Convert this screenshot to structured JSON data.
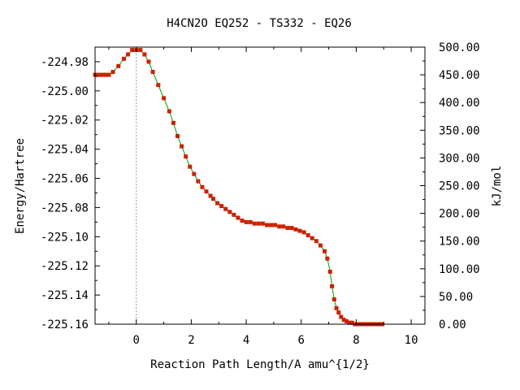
{
  "chart_data": {
    "type": "line",
    "title": "H4CN2O   EQ252 - TS332 - EQ26",
    "xlabel": "Reaction Path Length/A amu^{1/2}",
    "ylabel": "Energy/Hartree",
    "y2label": "kJ/mol",
    "xlim": [
      -1.5,
      10.5
    ],
    "ylim": [
      -225.16,
      -224.97
    ],
    "y2lim": [
      0,
      500
    ],
    "x_ticks": [
      0,
      2,
      4,
      6,
      8,
      10
    ],
    "y_ticks": [
      -224.98,
      -225.0,
      -225.02,
      -225.04,
      -225.06,
      -225.08,
      -225.1,
      -225.12,
      -225.14,
      -225.16
    ],
    "y2_ticks": [
      "0.00",
      "50.00",
      "100.00",
      "150.00",
      "200.00",
      "250.00",
      "300.00",
      "350.00",
      "400.00",
      "450.00",
      "500.00"
    ],
    "ts_x": 0,
    "colors": {
      "line": "#00a000",
      "marker": "#cc2200",
      "ts_line": "#999999"
    },
    "series": [
      {
        "x": [
          -1.5,
          -1.4,
          -1.3,
          -1.2,
          -1.1,
          -1.0,
          -0.85,
          -0.65,
          -0.45,
          -0.3,
          -0.15,
          0.0,
          0.15,
          0.3,
          0.45,
          0.6,
          0.8,
          1.0,
          1.2,
          1.35,
          1.5,
          1.65,
          1.8,
          1.95,
          2.1,
          2.25,
          2.4,
          2.55,
          2.7,
          2.8,
          2.95,
          3.1,
          3.25,
          3.4,
          3.55,
          3.7,
          3.85,
          4.0,
          4.15,
          4.3,
          4.45,
          4.6,
          4.75,
          4.9,
          5.05,
          5.2,
          5.35,
          5.5,
          5.65,
          5.8,
          5.95,
          6.1,
          6.25,
          6.4,
          6.55,
          6.7,
          6.85,
          6.95,
          7.05,
          7.12,
          7.2,
          7.28,
          7.36,
          7.45,
          7.55,
          7.65,
          7.75,
          7.85,
          7.95,
          8.05,
          8.15,
          8.25,
          8.35,
          8.45,
          8.55,
          8.65,
          8.75,
          8.85,
          8.95
        ],
        "y": [
          -224.989,
          -224.989,
          -224.989,
          -224.989,
          -224.989,
          -224.989,
          -224.987,
          -224.983,
          -224.978,
          -224.975,
          -224.972,
          -224.972,
          -224.972,
          -224.975,
          -224.98,
          -224.987,
          -224.996,
          -225.005,
          -225.014,
          -225.022,
          -225.031,
          -225.038,
          -225.045,
          -225.052,
          -225.057,
          -225.062,
          -225.066,
          -225.069,
          -225.072,
          -225.074,
          -225.077,
          -225.079,
          -225.081,
          -225.083,
          -225.085,
          -225.087,
          -225.089,
          -225.09,
          -225.09,
          -225.091,
          -225.091,
          -225.091,
          -225.092,
          -225.092,
          -225.092,
          -225.093,
          -225.093,
          -225.094,
          -225.094,
          -225.095,
          -225.096,
          -225.097,
          -225.099,
          -225.101,
          -225.103,
          -225.106,
          -225.11,
          -225.115,
          -225.124,
          -225.134,
          -225.143,
          -225.149,
          -225.152,
          -225.155,
          -225.157,
          -225.158,
          -225.159,
          -225.159,
          -225.16,
          -225.16,
          -225.16,
          -225.16,
          -225.16,
          -225.16,
          -225.16,
          -225.16,
          -225.16,
          -225.16,
          -225.16
        ]
      }
    ]
  }
}
